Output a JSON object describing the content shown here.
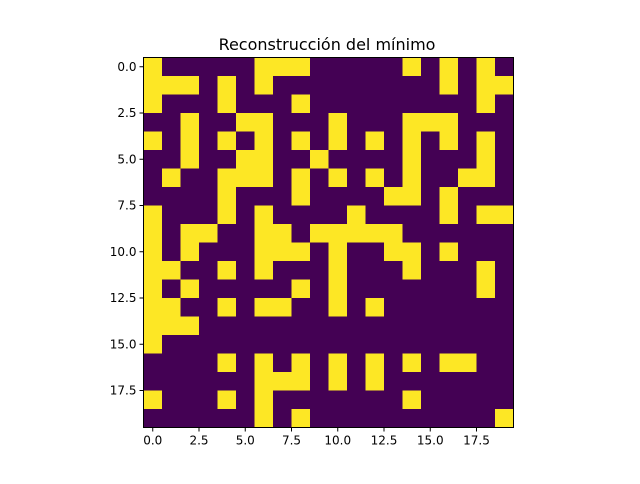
{
  "chart_data": {
    "type": "heatmap",
    "title": "Reconstrucción del mínimo",
    "xlabel": "",
    "ylabel": "",
    "colors": {
      "low": "#440154",
      "high": "#fde725"
    },
    "xlim": [
      -0.5,
      19.5
    ],
    "ylim": [
      19.5,
      -0.5
    ],
    "x_ticks": [
      0.0,
      2.5,
      5.0,
      7.5,
      10.0,
      12.5,
      15.0,
      17.5
    ],
    "x_tick_labels": [
      "0.0",
      "2.5",
      "5.0",
      "7.5",
      "10.0",
      "12.5",
      "15.0",
      "17.5"
    ],
    "y_ticks": [
      0.0,
      2.5,
      5.0,
      7.5,
      10.0,
      12.5,
      15.0,
      17.5
    ],
    "y_tick_labels": [
      "0.0",
      "2.5",
      "5.0",
      "7.5",
      "10.0",
      "12.5",
      "15.0",
      "17.5"
    ],
    "matrix": [
      [
        1,
        0,
        0,
        0,
        0,
        0,
        1,
        1,
        1,
        0,
        0,
        0,
        0,
        0,
        1,
        0,
        1,
        0,
        1,
        0
      ],
      [
        1,
        1,
        1,
        0,
        1,
        0,
        1,
        0,
        0,
        0,
        0,
        0,
        0,
        0,
        0,
        0,
        1,
        0,
        1,
        1
      ],
      [
        1,
        0,
        0,
        0,
        1,
        0,
        0,
        0,
        1,
        0,
        0,
        0,
        0,
        0,
        0,
        0,
        0,
        0,
        1,
        0
      ],
      [
        0,
        0,
        1,
        0,
        0,
        1,
        1,
        0,
        0,
        0,
        1,
        0,
        0,
        0,
        1,
        1,
        1,
        0,
        0,
        0
      ],
      [
        1,
        0,
        1,
        0,
        1,
        0,
        1,
        0,
        1,
        0,
        1,
        0,
        1,
        0,
        1,
        0,
        1,
        0,
        1,
        0
      ],
      [
        0,
        0,
        1,
        0,
        0,
        1,
        1,
        0,
        0,
        1,
        0,
        0,
        0,
        0,
        1,
        0,
        0,
        0,
        1,
        0
      ],
      [
        0,
        1,
        0,
        0,
        1,
        1,
        1,
        0,
        1,
        0,
        1,
        0,
        1,
        0,
        1,
        0,
        0,
        1,
        1,
        0
      ],
      [
        0,
        0,
        0,
        0,
        1,
        0,
        0,
        0,
        1,
        0,
        0,
        0,
        0,
        1,
        1,
        0,
        1,
        0,
        0,
        0
      ],
      [
        1,
        0,
        0,
        0,
        1,
        0,
        1,
        0,
        0,
        0,
        0,
        1,
        0,
        0,
        0,
        0,
        1,
        0,
        1,
        1
      ],
      [
        1,
        0,
        1,
        1,
        0,
        0,
        1,
        1,
        0,
        1,
        1,
        1,
        1,
        1,
        0,
        0,
        0,
        0,
        0,
        0
      ],
      [
        1,
        0,
        1,
        0,
        0,
        0,
        1,
        1,
        1,
        0,
        1,
        0,
        0,
        1,
        1,
        0,
        1,
        0,
        0,
        0
      ],
      [
        1,
        1,
        0,
        0,
        1,
        0,
        1,
        0,
        0,
        0,
        1,
        0,
        0,
        0,
        1,
        0,
        0,
        0,
        1,
        0
      ],
      [
        1,
        0,
        1,
        0,
        0,
        0,
        0,
        0,
        1,
        0,
        1,
        0,
        0,
        0,
        0,
        0,
        0,
        0,
        1,
        0
      ],
      [
        1,
        1,
        0,
        0,
        1,
        0,
        1,
        1,
        0,
        0,
        1,
        0,
        1,
        0,
        0,
        0,
        0,
        0,
        0,
        0
      ],
      [
        1,
        1,
        1,
        0,
        0,
        0,
        0,
        0,
        0,
        0,
        0,
        0,
        0,
        0,
        0,
        0,
        0,
        0,
        0,
        0
      ],
      [
        1,
        0,
        0,
        0,
        0,
        0,
        0,
        0,
        0,
        0,
        0,
        0,
        0,
        0,
        0,
        0,
        0,
        0,
        0,
        0
      ],
      [
        0,
        0,
        0,
        0,
        1,
        0,
        1,
        0,
        1,
        0,
        1,
        0,
        1,
        0,
        1,
        0,
        1,
        1,
        0,
        0
      ],
      [
        0,
        0,
        0,
        0,
        0,
        0,
        1,
        1,
        1,
        0,
        1,
        0,
        1,
        0,
        0,
        0,
        0,
        0,
        0,
        0
      ],
      [
        1,
        0,
        0,
        0,
        1,
        0,
        1,
        0,
        0,
        0,
        0,
        0,
        0,
        0,
        1,
        0,
        0,
        0,
        0,
        0
      ],
      [
        0,
        0,
        0,
        0,
        0,
        0,
        1,
        0,
        1,
        0,
        0,
        0,
        0,
        0,
        0,
        0,
        0,
        0,
        0,
        1
      ]
    ]
  }
}
